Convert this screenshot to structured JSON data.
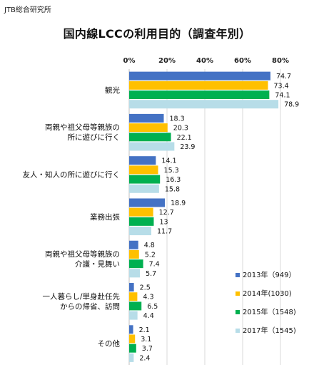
{
  "source": "JTB総合研究所",
  "chart_data": {
    "type": "bar",
    "orientation": "horizontal",
    "title": "国内線LCCの利用目的（調査年別）",
    "xlim": [
      0,
      80
    ],
    "ticks": [
      "0%",
      "20%",
      "40%",
      "60%",
      "80%"
    ],
    "grid": true,
    "legend_position": "bottom-right",
    "categories": [
      [
        "観光"
      ],
      [
        "両親や祖父母等親族の",
        "所に遊びに行く"
      ],
      [
        "友人・知人の所に遊びに行く"
      ],
      [
        "業務出張"
      ],
      [
        "両親や祖父母等親族の",
        "介護・見舞い"
      ],
      [
        "一人暮らし/単身赴任先",
        "からの帰省、訪問"
      ],
      [
        "その他"
      ]
    ],
    "series": [
      {
        "name": "2013年（949）",
        "color": "#4472c4",
        "values": [
          74.7,
          18.3,
          14.1,
          18.9,
          4.8,
          2.5,
          2.1
        ]
      },
      {
        "name": "2014年(1030)",
        "color": "#ffc000",
        "values": [
          73.4,
          20.3,
          15.3,
          12.7,
          5.2,
          4.3,
          3.1
        ]
      },
      {
        "name": "2015年（1548)",
        "color": "#00b050",
        "values": [
          74.1,
          22.1,
          16.3,
          13,
          7.4,
          6.5,
          3.7
        ]
      },
      {
        "name": "2017年（1545)",
        "color": "#b7dde8",
        "values": [
          78.9,
          23.9,
          15.8,
          11.7,
          5.7,
          4.4,
          2.4
        ]
      }
    ]
  }
}
